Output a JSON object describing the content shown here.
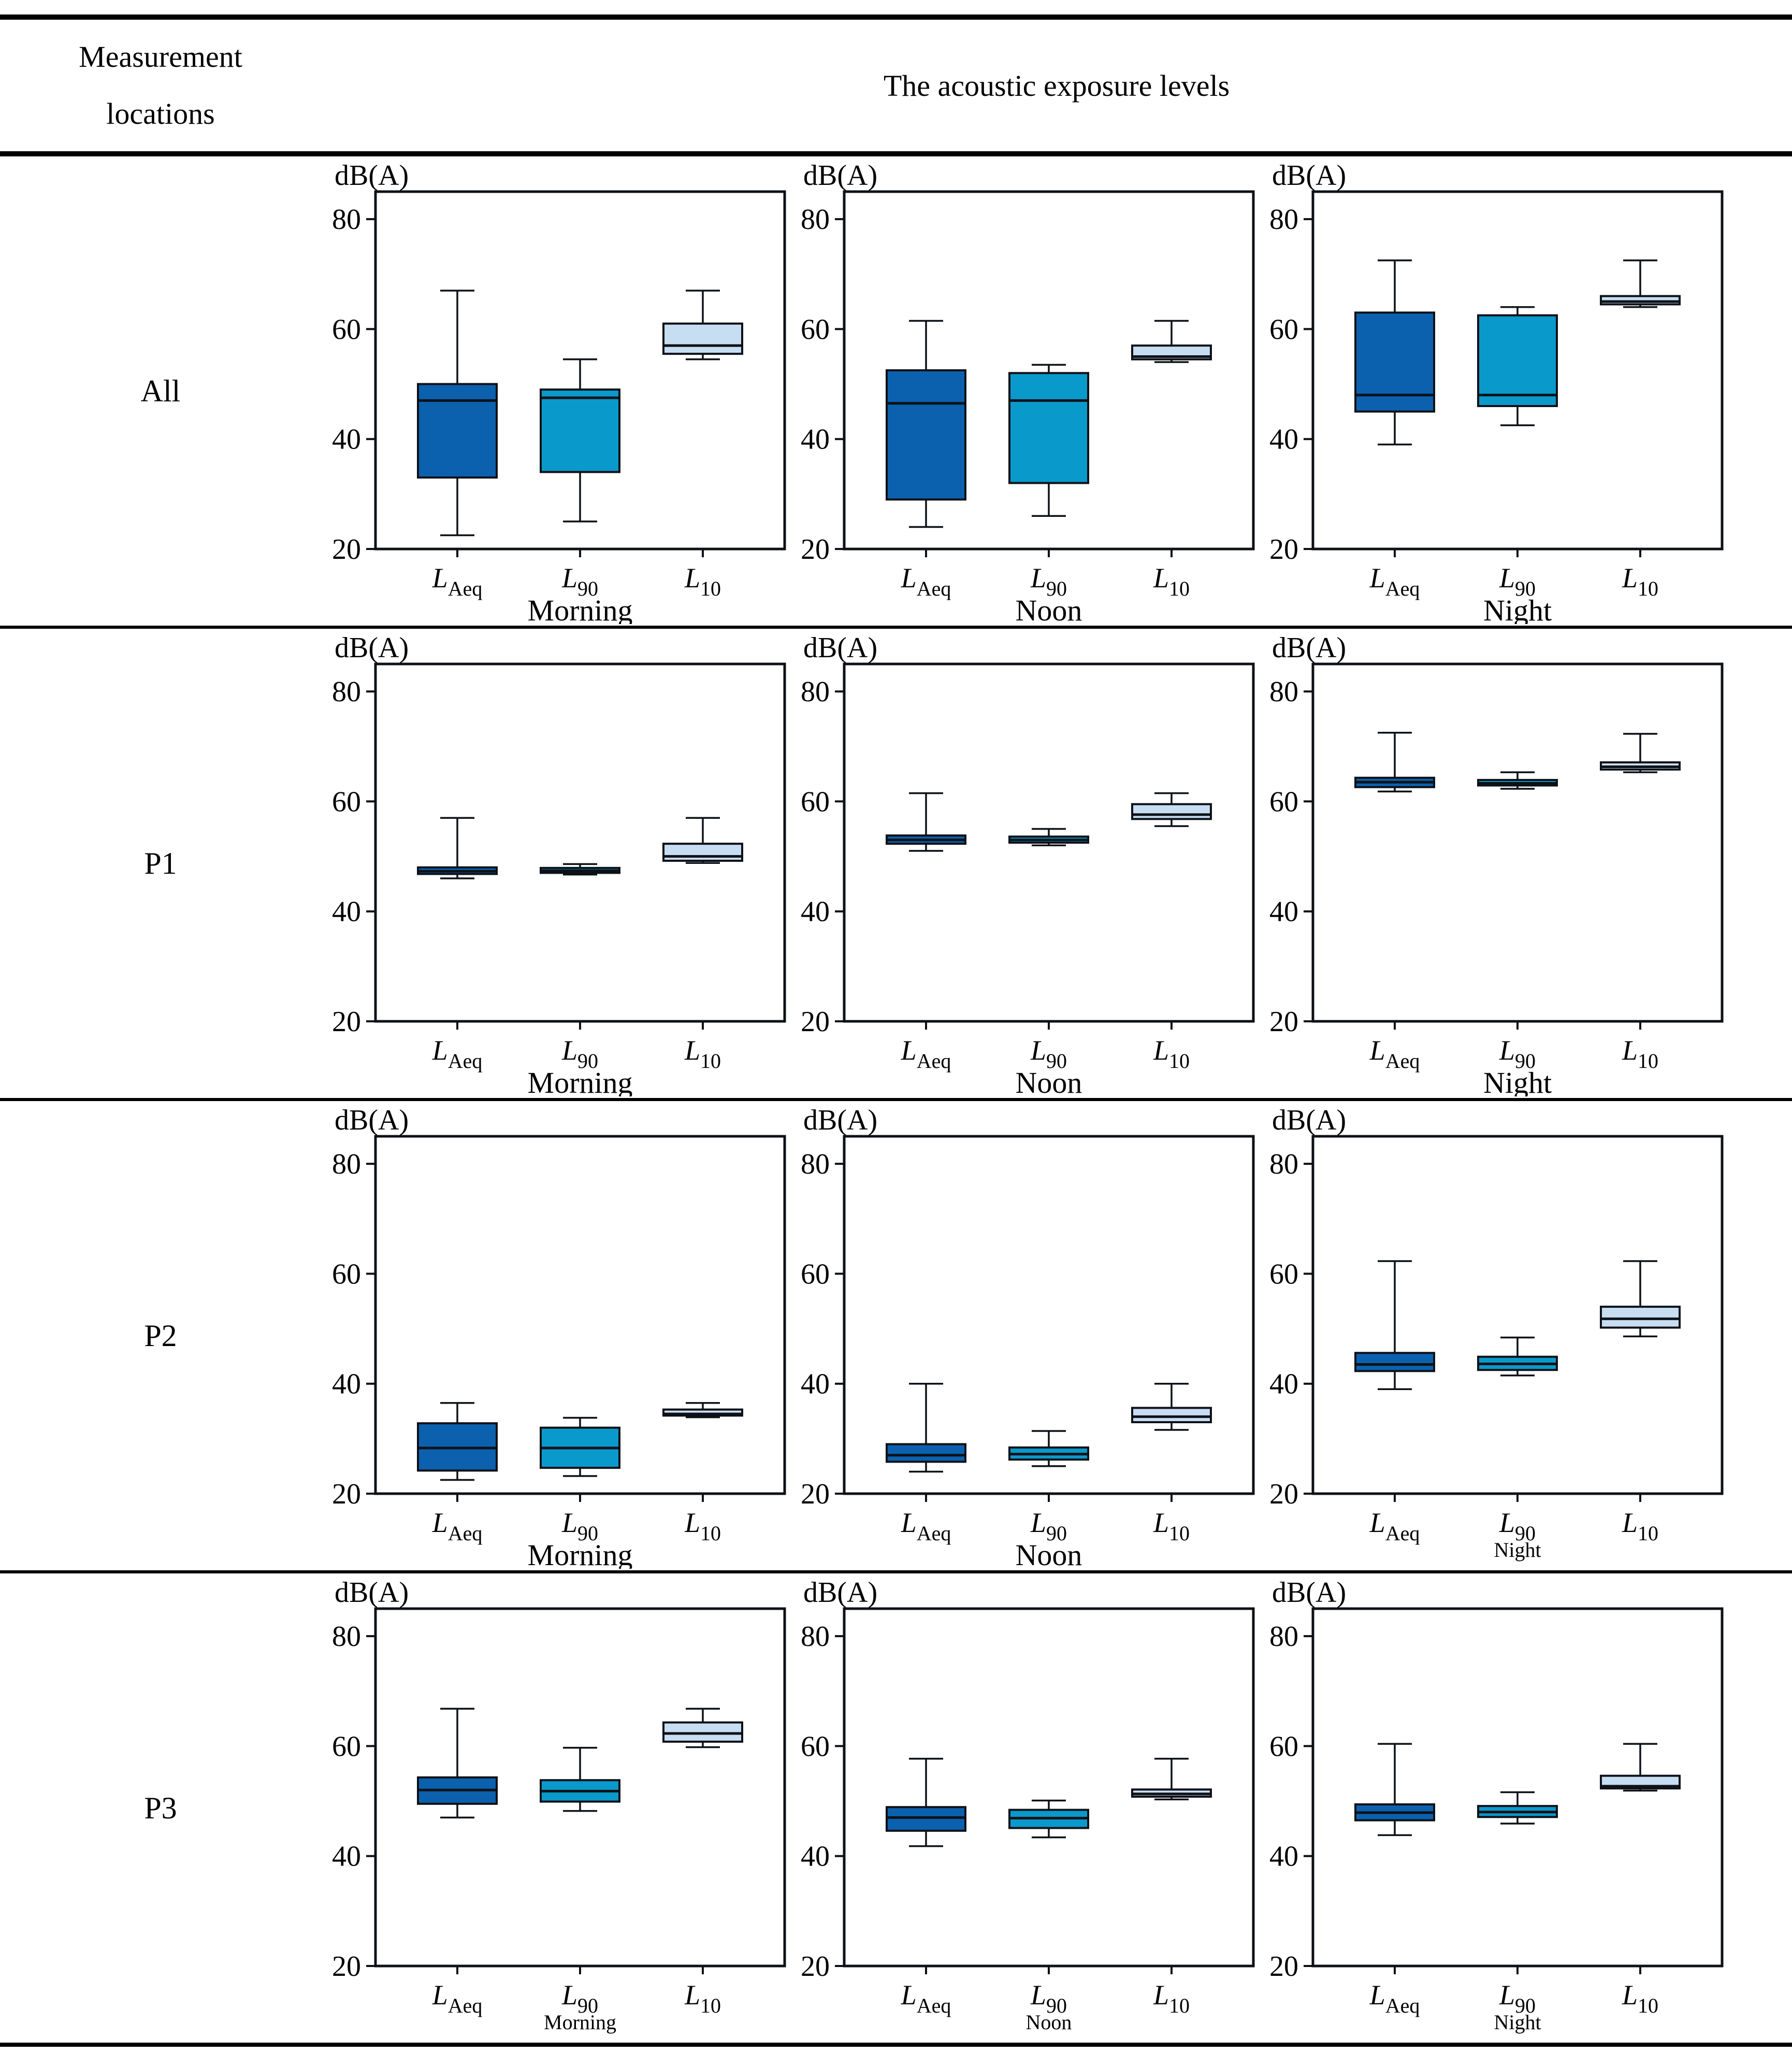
{
  "header": {
    "col1_line1": "Measurement",
    "col1_line2": "locations",
    "col2": "The acoustic exposure levels"
  },
  "colors": {
    "box_laeq": "#0b61ae",
    "box_l90": "#0a99cb",
    "box_l10": "#c7ddf2",
    "stroke": "#0d1117"
  },
  "chart_data": {
    "type": "box",
    "unit_label": "dB(A)",
    "ylim": [
      20,
      85
    ],
    "yticks": [
      80,
      60,
      40,
      20
    ],
    "grid": false,
    "categories": [
      "L_Aeq",
      "L_90",
      "L_10"
    ],
    "categories_display": [
      {
        "base": "L",
        "sub": "Aeq"
      },
      {
        "base": "L",
        "sub": "90"
      },
      {
        "base": "L",
        "sub": "10"
      }
    ],
    "rows": [
      {
        "label": "All",
        "charts": [
          {
            "time": "Morning",
            "small_time_label": false,
            "boxes": [
              {
                "category": "L_Aeq",
                "whisker_low": 22.5,
                "q1": 33.0,
                "median": 47.0,
                "q3": 50.0,
                "whisker_high": 67.0
              },
              {
                "category": "L_90",
                "whisker_low": 25.0,
                "q1": 34.0,
                "median": 47.5,
                "q3": 49.0,
                "whisker_high": 54.5
              },
              {
                "category": "L_10",
                "whisker_low": 54.5,
                "q1": 55.5,
                "median": 57.0,
                "q3": 61.0,
                "whisker_high": 67.0
              }
            ]
          },
          {
            "time": "Noon",
            "small_time_label": false,
            "boxes": [
              {
                "category": "L_Aeq",
                "whisker_low": 24.0,
                "q1": 29.0,
                "median": 46.5,
                "q3": 52.5,
                "whisker_high": 61.5
              },
              {
                "category": "L_90",
                "whisker_low": 26.0,
                "q1": 32.0,
                "median": 47.0,
                "q3": 52.0,
                "whisker_high": 53.5
              },
              {
                "category": "L_10",
                "whisker_low": 54.0,
                "q1": 54.5,
                "median": 55.0,
                "q3": 57.0,
                "whisker_high": 61.5
              }
            ]
          },
          {
            "time": "Night",
            "small_time_label": false,
            "boxes": [
              {
                "category": "L_Aeq",
                "whisker_low": 39.0,
                "q1": 45.0,
                "median": 48.0,
                "q3": 63.0,
                "whisker_high": 72.5
              },
              {
                "category": "L_90",
                "whisker_low": 42.5,
                "q1": 46.0,
                "median": 48.0,
                "q3": 62.5,
                "whisker_high": 64.0
              },
              {
                "category": "L_10",
                "whisker_low": 64.0,
                "q1": 64.5,
                "median": 65.0,
                "q3": 66.0,
                "whisker_high": 72.5
              }
            ]
          }
        ]
      },
      {
        "label": "P1",
        "charts": [
          {
            "time": "Morning",
            "small_time_label": false,
            "boxes": [
              {
                "category": "L_Aeq",
                "whisker_low": 46.0,
                "q1": 46.8,
                "median": 47.3,
                "q3": 48.0,
                "whisker_high": 57.0
              },
              {
                "category": "L_90",
                "whisker_low": 46.7,
                "q1": 47.0,
                "median": 47.4,
                "q3": 47.9,
                "whisker_high": 48.6
              },
              {
                "category": "L_10",
                "whisker_low": 48.8,
                "q1": 49.2,
                "median": 50.0,
                "q3": 52.3,
                "whisker_high": 57.0
              }
            ]
          },
          {
            "time": "Noon",
            "small_time_label": false,
            "boxes": [
              {
                "category": "L_Aeq",
                "whisker_low": 51.0,
                "q1": 52.3,
                "median": 53.0,
                "q3": 53.8,
                "whisker_high": 61.5
              },
              {
                "category": "L_90",
                "whisker_low": 52.0,
                "q1": 52.5,
                "median": 53.0,
                "q3": 53.6,
                "whisker_high": 55.0
              },
              {
                "category": "L_10",
                "whisker_low": 55.5,
                "q1": 56.8,
                "median": 57.6,
                "q3": 59.5,
                "whisker_high": 61.5
              }
            ]
          },
          {
            "time": "Night",
            "small_time_label": false,
            "boxes": [
              {
                "category": "L_Aeq",
                "whisker_low": 61.8,
                "q1": 62.6,
                "median": 63.5,
                "q3": 64.3,
                "whisker_high": 72.5
              },
              {
                "category": "L_90",
                "whisker_low": 62.3,
                "q1": 62.9,
                "median": 63.3,
                "q3": 63.9,
                "whisker_high": 65.3
              },
              {
                "category": "L_10",
                "whisker_low": 65.3,
                "q1": 65.8,
                "median": 66.3,
                "q3": 67.1,
                "whisker_high": 72.3
              }
            ]
          }
        ]
      },
      {
        "label": "P2",
        "charts": [
          {
            "time": "Morning",
            "small_time_label": false,
            "boxes": [
              {
                "category": "L_Aeq",
                "whisker_low": 22.5,
                "q1": 24.2,
                "median": 28.3,
                "q3": 32.8,
                "whisker_high": 36.5
              },
              {
                "category": "L_90",
                "whisker_low": 23.2,
                "q1": 24.7,
                "median": 28.3,
                "q3": 32.0,
                "whisker_high": 33.8
              },
              {
                "category": "L_10",
                "whisker_low": 33.9,
                "q1": 34.2,
                "median": 34.5,
                "q3": 35.3,
                "whisker_high": 36.5
              }
            ]
          },
          {
            "time": "Noon",
            "small_time_label": false,
            "boxes": [
              {
                "category": "L_Aeq",
                "whisker_low": 24.0,
                "q1": 25.8,
                "median": 27.0,
                "q3": 29.0,
                "whisker_high": 40.0
              },
              {
                "category": "L_90",
                "whisker_low": 25.0,
                "q1": 26.2,
                "median": 27.2,
                "q3": 28.4,
                "whisker_high": 31.4
              },
              {
                "category": "L_10",
                "whisker_low": 31.6,
                "q1": 33.0,
                "median": 34.0,
                "q3": 35.6,
                "whisker_high": 40.0
              }
            ]
          },
          {
            "time": "Night",
            "small_time_label": true,
            "boxes": [
              {
                "category": "L_Aeq",
                "whisker_low": 39.0,
                "q1": 42.3,
                "median": 43.5,
                "q3": 45.6,
                "whisker_high": 62.3
              },
              {
                "category": "L_90",
                "whisker_low": 41.5,
                "q1": 42.5,
                "median": 43.6,
                "q3": 44.9,
                "whisker_high": 48.4
              },
              {
                "category": "L_10",
                "whisker_low": 48.6,
                "q1": 50.2,
                "median": 51.8,
                "q3": 54.0,
                "whisker_high": 62.3
              }
            ]
          }
        ]
      },
      {
        "label": "P3",
        "charts": [
          {
            "time": "Morning",
            "small_time_label": true,
            "boxes": [
              {
                "category": "L_Aeq",
                "whisker_low": 47.0,
                "q1": 49.5,
                "median": 52.0,
                "q3": 54.3,
                "whisker_high": 66.8
              },
              {
                "category": "L_90",
                "whisker_low": 48.2,
                "q1": 49.9,
                "median": 51.8,
                "q3": 53.8,
                "whisker_high": 59.7
              },
              {
                "category": "L_10",
                "whisker_low": 59.8,
                "q1": 60.8,
                "median": 62.3,
                "q3": 64.3,
                "whisker_high": 66.8
              }
            ]
          },
          {
            "time": "Noon",
            "small_time_label": true,
            "boxes": [
              {
                "category": "L_Aeq",
                "whisker_low": 41.8,
                "q1": 44.6,
                "median": 47.0,
                "q3": 48.9,
                "whisker_high": 57.7
              },
              {
                "category": "L_90",
                "whisker_low": 43.4,
                "q1": 45.1,
                "median": 46.9,
                "q3": 48.4,
                "whisker_high": 50.1
              },
              {
                "category": "L_10",
                "whisker_low": 50.3,
                "q1": 50.8,
                "median": 51.3,
                "q3": 52.1,
                "whisker_high": 57.7
              }
            ]
          },
          {
            "time": "Night",
            "small_time_label": true,
            "boxes": [
              {
                "category": "L_Aeq",
                "whisker_low": 43.8,
                "q1": 46.5,
                "median": 47.9,
                "q3": 49.4,
                "whisker_high": 60.4
              },
              {
                "category": "L_90",
                "whisker_low": 45.9,
                "q1": 47.1,
                "median": 48.0,
                "q3": 49.1,
                "whisker_high": 51.6
              },
              {
                "category": "L_10",
                "whisker_low": 51.9,
                "q1": 52.3,
                "median": 52.7,
                "q3": 54.6,
                "whisker_high": 60.4
              }
            ]
          }
        ]
      }
    ]
  }
}
